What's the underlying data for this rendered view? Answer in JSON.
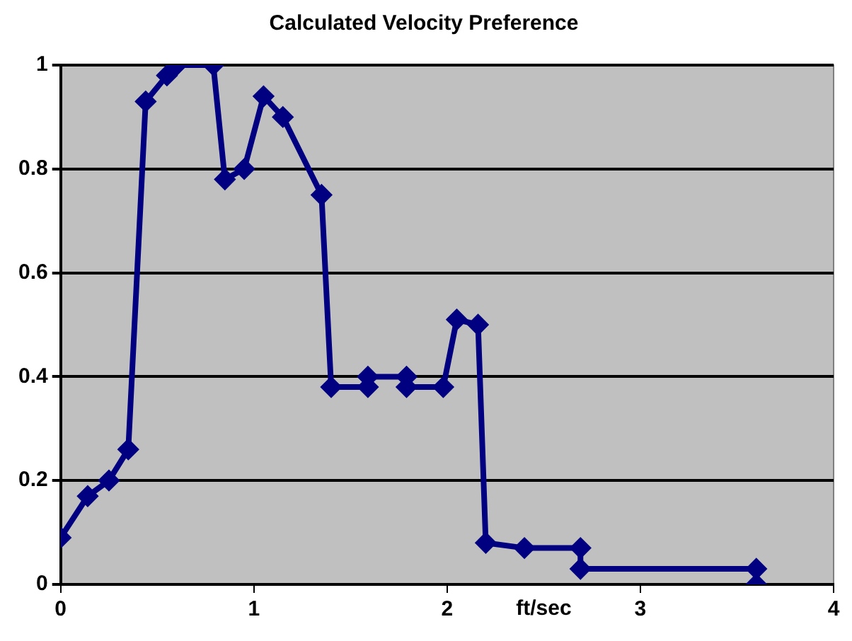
{
  "chart_data": {
    "type": "line",
    "title": "Calculated Velocity Preference",
    "xlabel": "ft/sec",
    "series": [
      {
        "color": "#000080",
        "x": [
          0,
          0.14,
          0.25,
          0.35,
          0.44,
          0.55,
          0.6,
          0.79,
          0.85,
          0.95,
          1.05,
          1.15,
          1.35,
          1.4,
          1.59,
          1.59,
          1.79,
          1.79,
          1.98,
          2.05,
          2.16,
          2.2,
          2.4,
          2.69,
          2.69,
          3.6,
          3.6
        ],
        "values": [
          0.09,
          0.17,
          0.2,
          0.26,
          0.93,
          0.98,
          1,
          1,
          0.78,
          0.8,
          0.94,
          0.9,
          0.75,
          0.38,
          0.38,
          0.4,
          0.4,
          0.38,
          0.38,
          0.51,
          0.5,
          0.08,
          0.07,
          0.07,
          0.03,
          0.03,
          0
        ]
      }
    ],
    "xlim": [
      0,
      4
    ],
    "xticks": [
      0,
      1,
      2,
      3,
      4
    ],
    "ylim": [
      0,
      1
    ],
    "yticks": [
      0,
      0.2,
      0.4,
      0.6,
      0.8,
      1
    ],
    "grid": "y",
    "marker": "diamond",
    "line_style": "solid",
    "legend": false
  }
}
